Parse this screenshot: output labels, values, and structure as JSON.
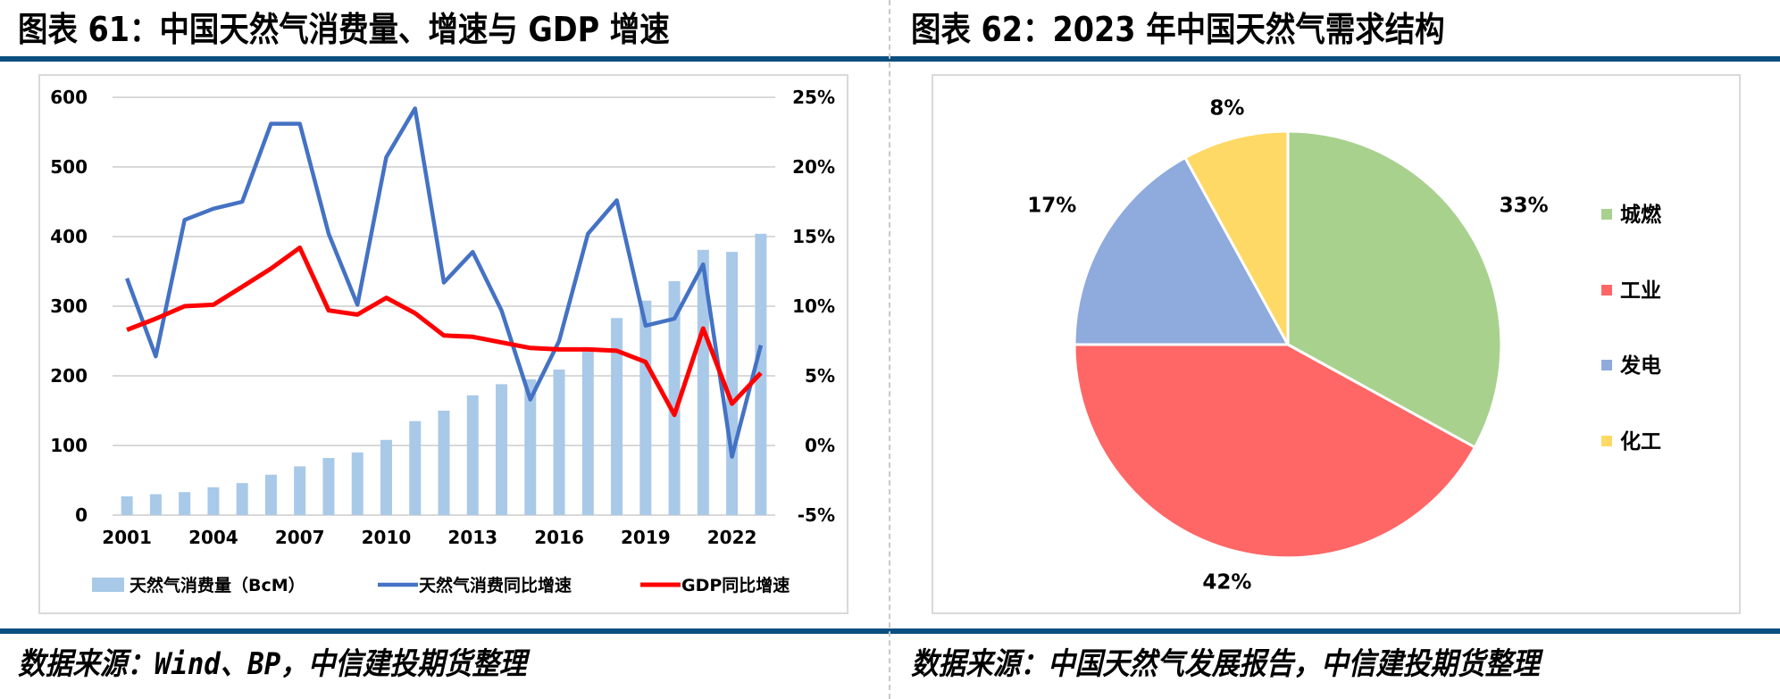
{
  "page": {
    "divider": "dashed",
    "rule_color": "#0b4f80"
  },
  "left_figure": {
    "title": "图表 61：中国天然气消费量、增速与 GDP 增速",
    "source": "数据来源：Wind、BP，中信建投期货整理"
  },
  "right_figure": {
    "title": "图表 62：2023 年中国天然气需求结构",
    "source": "数据来源：中国天然气发展报告，中信建投期货整理"
  },
  "chart_data": [
    {
      "type": "bar+line",
      "title": "中国天然气消费量、增速与 GDP 增速",
      "categories": [
        "2001",
        "2002",
        "2003",
        "2004",
        "2005",
        "2006",
        "2007",
        "2008",
        "2009",
        "2010",
        "2011",
        "2012",
        "2013",
        "2014",
        "2015",
        "2016",
        "2017",
        "2018",
        "2019",
        "2020",
        "2021",
        "2022",
        "2023"
      ],
      "x_tick_labels": [
        "2001",
        "2004",
        "2007",
        "2010",
        "2013",
        "2016",
        "2019",
        "2022"
      ],
      "y_left": {
        "min": 0,
        "max": 600,
        "ticks": [
          "0",
          "100",
          "200",
          "300",
          "400",
          "500",
          "600"
        ],
        "tick_values": [
          0,
          100,
          200,
          300,
          400,
          500,
          600
        ]
      },
      "y_right": {
        "min": -5,
        "max": 25,
        "ticks": [
          "-5%",
          "0%",
          "5%",
          "10%",
          "15%",
          "20%",
          "25%"
        ],
        "tick_values": [
          -5,
          0,
          5,
          10,
          15,
          20,
          25
        ]
      },
      "grid": true,
      "legend_position": "bottom",
      "series": [
        {
          "name": "天然气消费量（BcM）",
          "type": "bar",
          "axis": "left",
          "color": "#a9c9e8",
          "values": [
            27,
            30,
            33,
            40,
            46,
            58,
            70,
            82,
            90,
            108,
            135,
            150,
            172,
            188,
            195,
            209,
            235,
            283,
            308,
            336,
            381,
            378,
            404
          ]
        },
        {
          "name": "天然气消费同比增速",
          "type": "line",
          "axis": "right",
          "color": "#4472c4",
          "unit": "%",
          "values": [
            12.0,
            6.4,
            16.2,
            17.0,
            17.5,
            23.1,
            23.1,
            15.2,
            10.1,
            20.7,
            24.2,
            11.7,
            13.9,
            9.7,
            3.3,
            7.5,
            15.2,
            17.6,
            8.6,
            9.1,
            13.0,
            -0.8,
            7.2
          ]
        },
        {
          "name": "GDP同比增速",
          "type": "line",
          "axis": "right",
          "color": "#ff0000",
          "unit": "%",
          "values": [
            8.3,
            9.1,
            10.0,
            10.1,
            11.4,
            12.7,
            14.2,
            9.7,
            9.4,
            10.6,
            9.5,
            7.9,
            7.8,
            7.4,
            7.0,
            6.9,
            6.9,
            6.8,
            6.0,
            2.2,
            8.4,
            3.0,
            5.2
          ]
        }
      ]
    },
    {
      "type": "pie",
      "title": "2023 年中国天然气需求结构",
      "legend_position": "right",
      "slices": [
        {
          "label": "城燃",
          "value": 33,
          "display": "33%",
          "color": "#a9d18e"
        },
        {
          "label": "工业",
          "value": 42,
          "display": "42%",
          "color": "#ff6666"
        },
        {
          "label": "发电",
          "value": 17,
          "display": "17%",
          "color": "#8faadc"
        },
        {
          "label": "化工",
          "value": 8,
          "display": "8%",
          "color": "#ffd966"
        }
      ]
    }
  ]
}
